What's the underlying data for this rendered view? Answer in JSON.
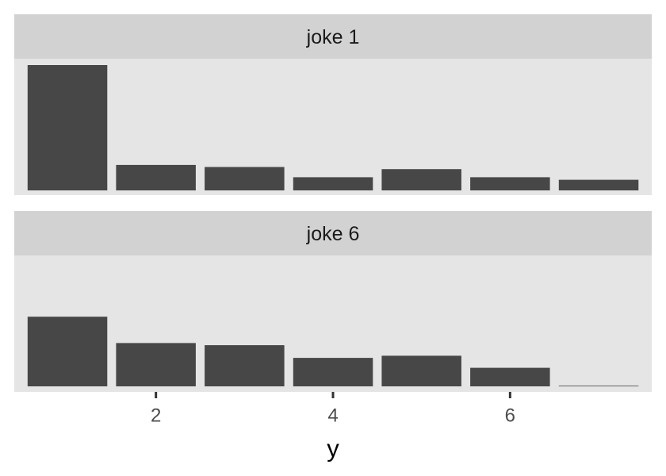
{
  "chart_data": {
    "type": "bar",
    "xlabel": "y",
    "ylabel": "",
    "x_ticks": [
      2,
      4,
      6
    ],
    "x": [
      1,
      2,
      3,
      4,
      5,
      6,
      7
    ],
    "xlim": [
      0.4,
      7.6
    ],
    "ylim": [
      0,
      0.62
    ],
    "grid": false,
    "panels": [
      {
        "strip": "joke 1",
        "values": [
          0.59,
          0.12,
          0.11,
          0.062,
          0.1,
          0.062,
          0.05
        ]
      },
      {
        "strip": "joke 6",
        "values": [
          0.33,
          0.205,
          0.195,
          0.135,
          0.145,
          0.088,
          0.002
        ]
      }
    ],
    "colors": {
      "bar": "#474747",
      "panel_background": "#e5e5e5",
      "strip_background": "#d2d2d2",
      "tick": "#333333"
    }
  }
}
